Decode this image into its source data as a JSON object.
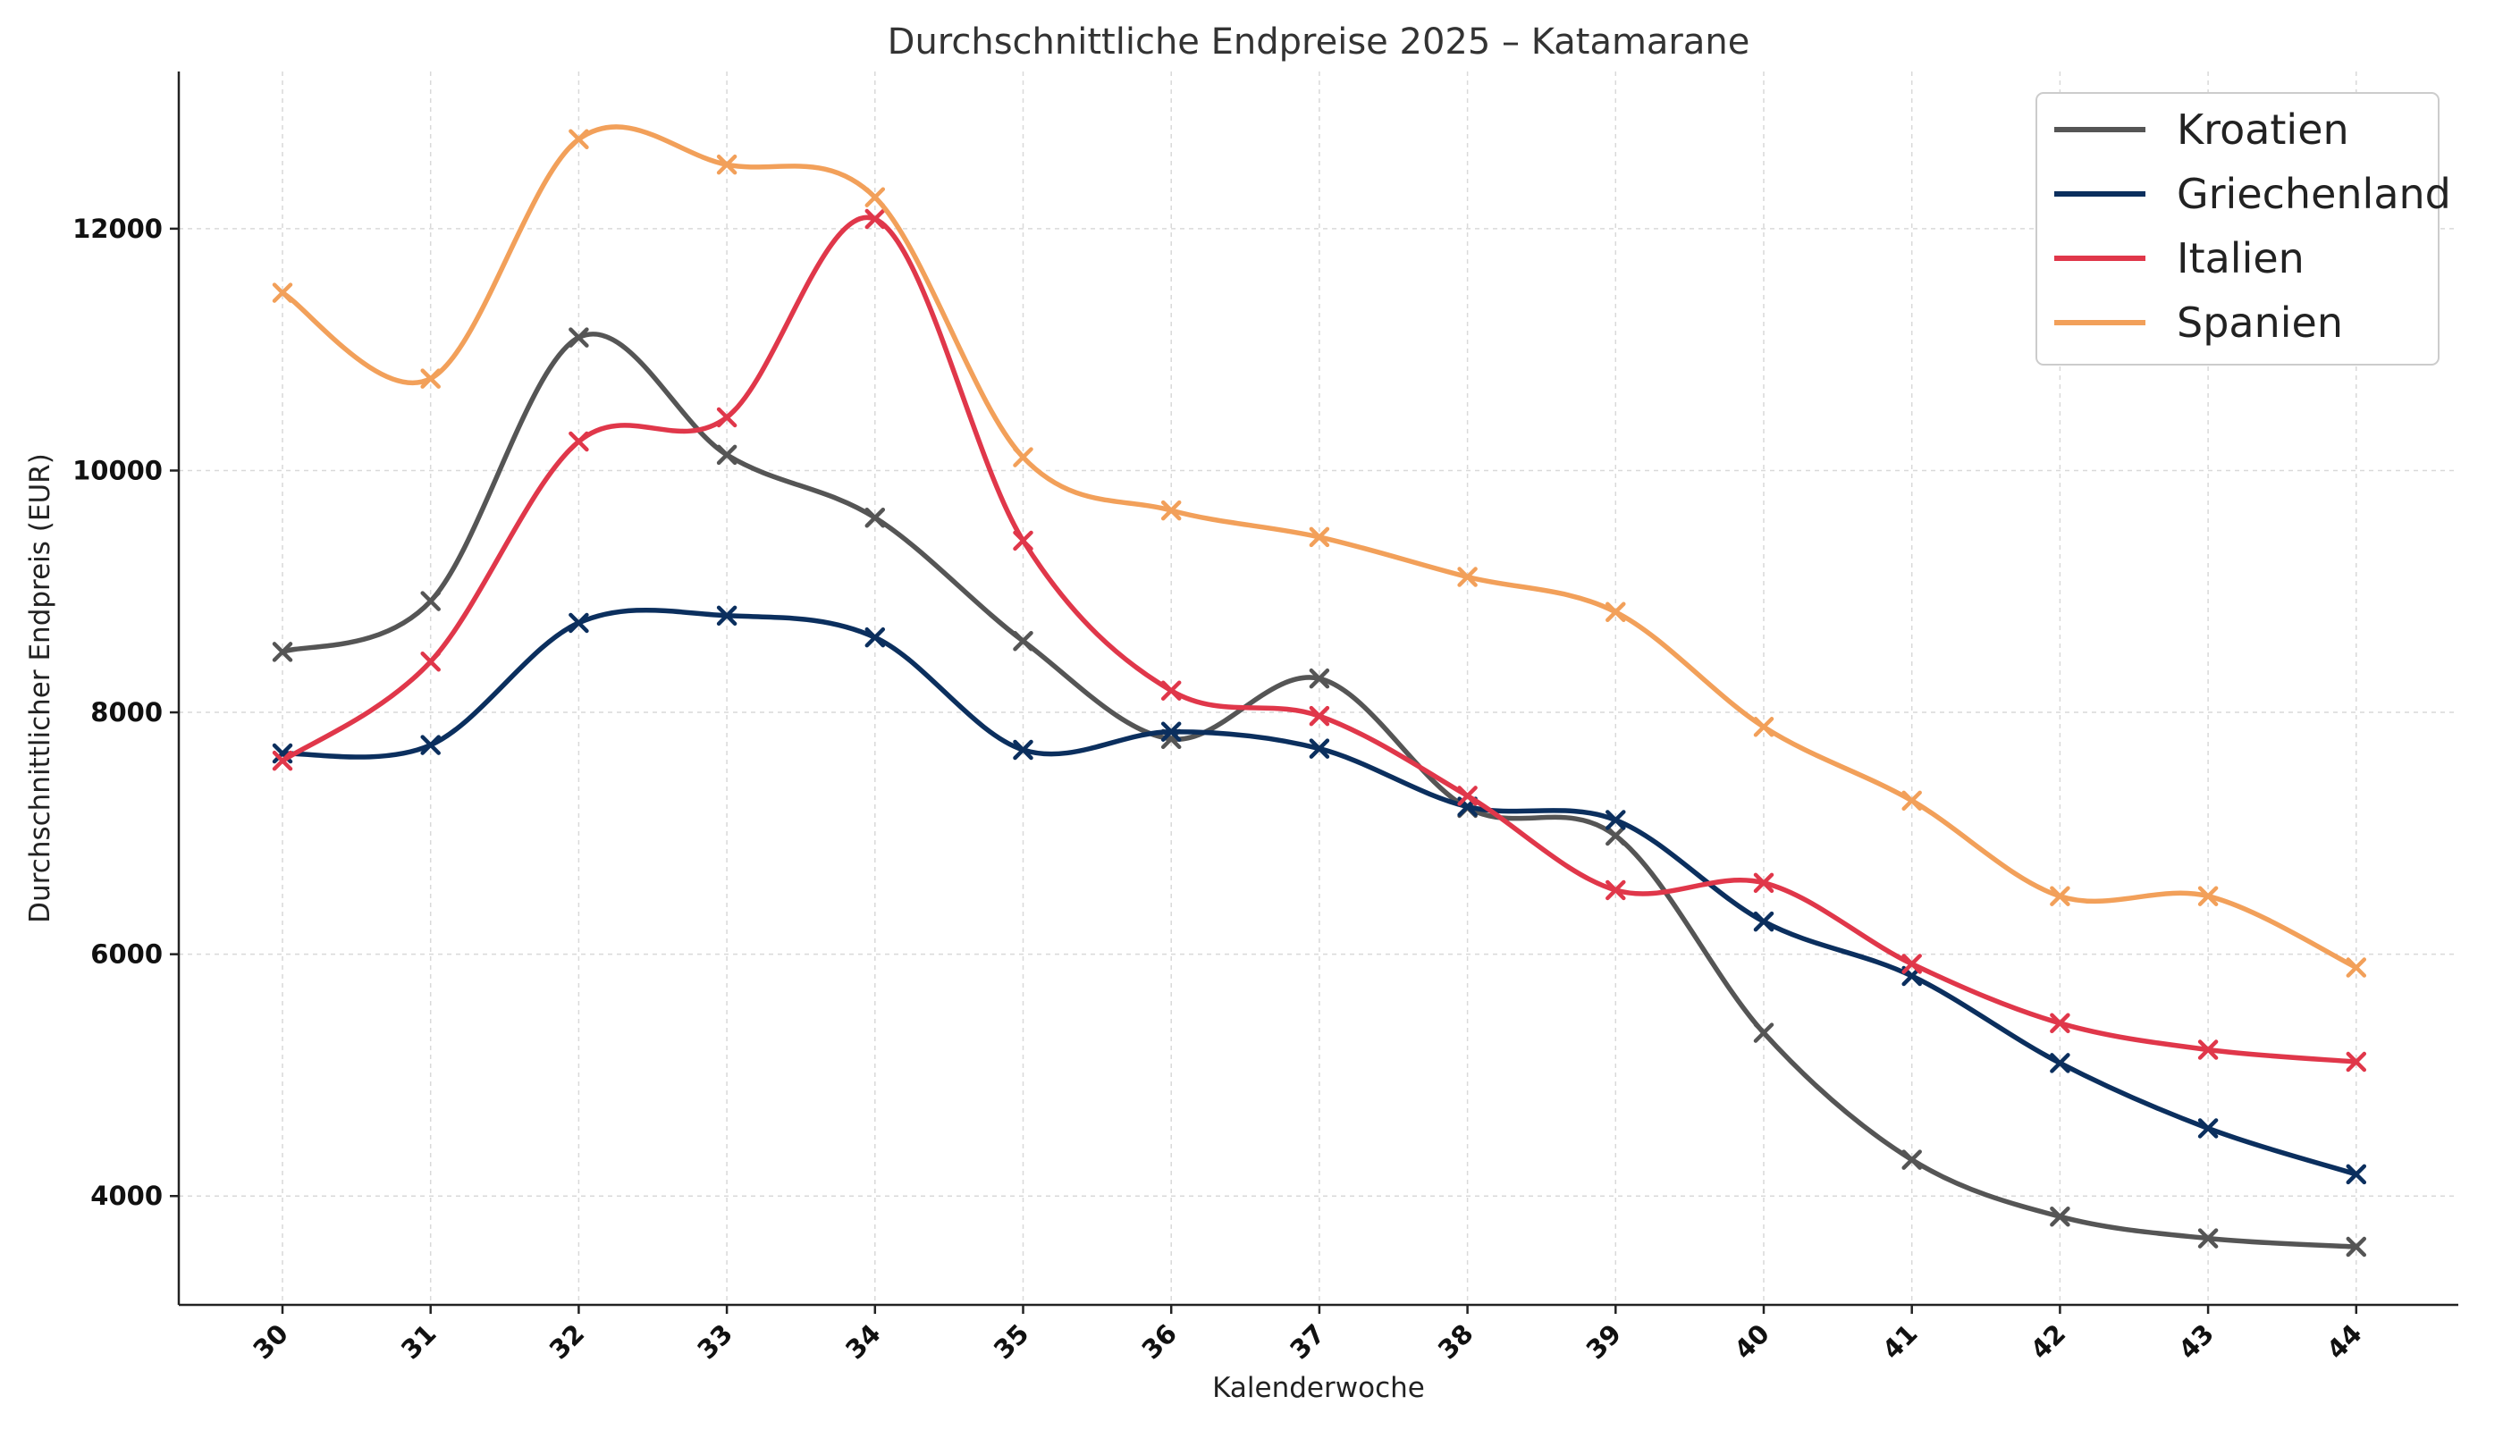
{
  "chart_data": {
    "type": "line",
    "title": "Durchschnittliche Endpreise 2025 – Katamarane",
    "xlabel": "Kalenderwoche",
    "ylabel": "Durchschnittlicher Endpreis (EUR)",
    "categories": [
      "30",
      "31",
      "32",
      "33",
      "34",
      "35",
      "36",
      "37",
      "38",
      "39",
      "40",
      "41",
      "42",
      "43",
      "44"
    ],
    "ylim": [
      3100,
      13300
    ],
    "yticks": [
      4000,
      6000,
      8000,
      10000,
      12000
    ],
    "grid": true,
    "legend_position": "top-right",
    "series": [
      {
        "name": "Kroatien",
        "color": "#555555",
        "values": [
          8500,
          8920,
          11100,
          10130,
          9610,
          8590,
          7780,
          8280,
          7210,
          6980,
          5350,
          4300,
          3830,
          3650,
          3580
        ]
      },
      {
        "name": "Griechenland",
        "color": "#0b2f5e",
        "values": [
          7660,
          7730,
          8740,
          8800,
          8620,
          7690,
          7840,
          7700,
          7220,
          7110,
          6270,
          5820,
          5100,
          4560,
          4180
        ]
      },
      {
        "name": "Italien",
        "color": "#e0374a",
        "values": [
          7600,
          8420,
          10240,
          10440,
          12080,
          9420,
          8180,
          7970,
          7310,
          6530,
          6590,
          5920,
          5430,
          5210,
          5110
        ]
      },
      {
        "name": "Spanien",
        "color": "#f2a05a",
        "values": [
          11470,
          10760,
          12740,
          12530,
          12260,
          10110,
          9670,
          9450,
          9120,
          8830,
          7880,
          7270,
          6480,
          6480,
          5890
        ]
      }
    ]
  }
}
